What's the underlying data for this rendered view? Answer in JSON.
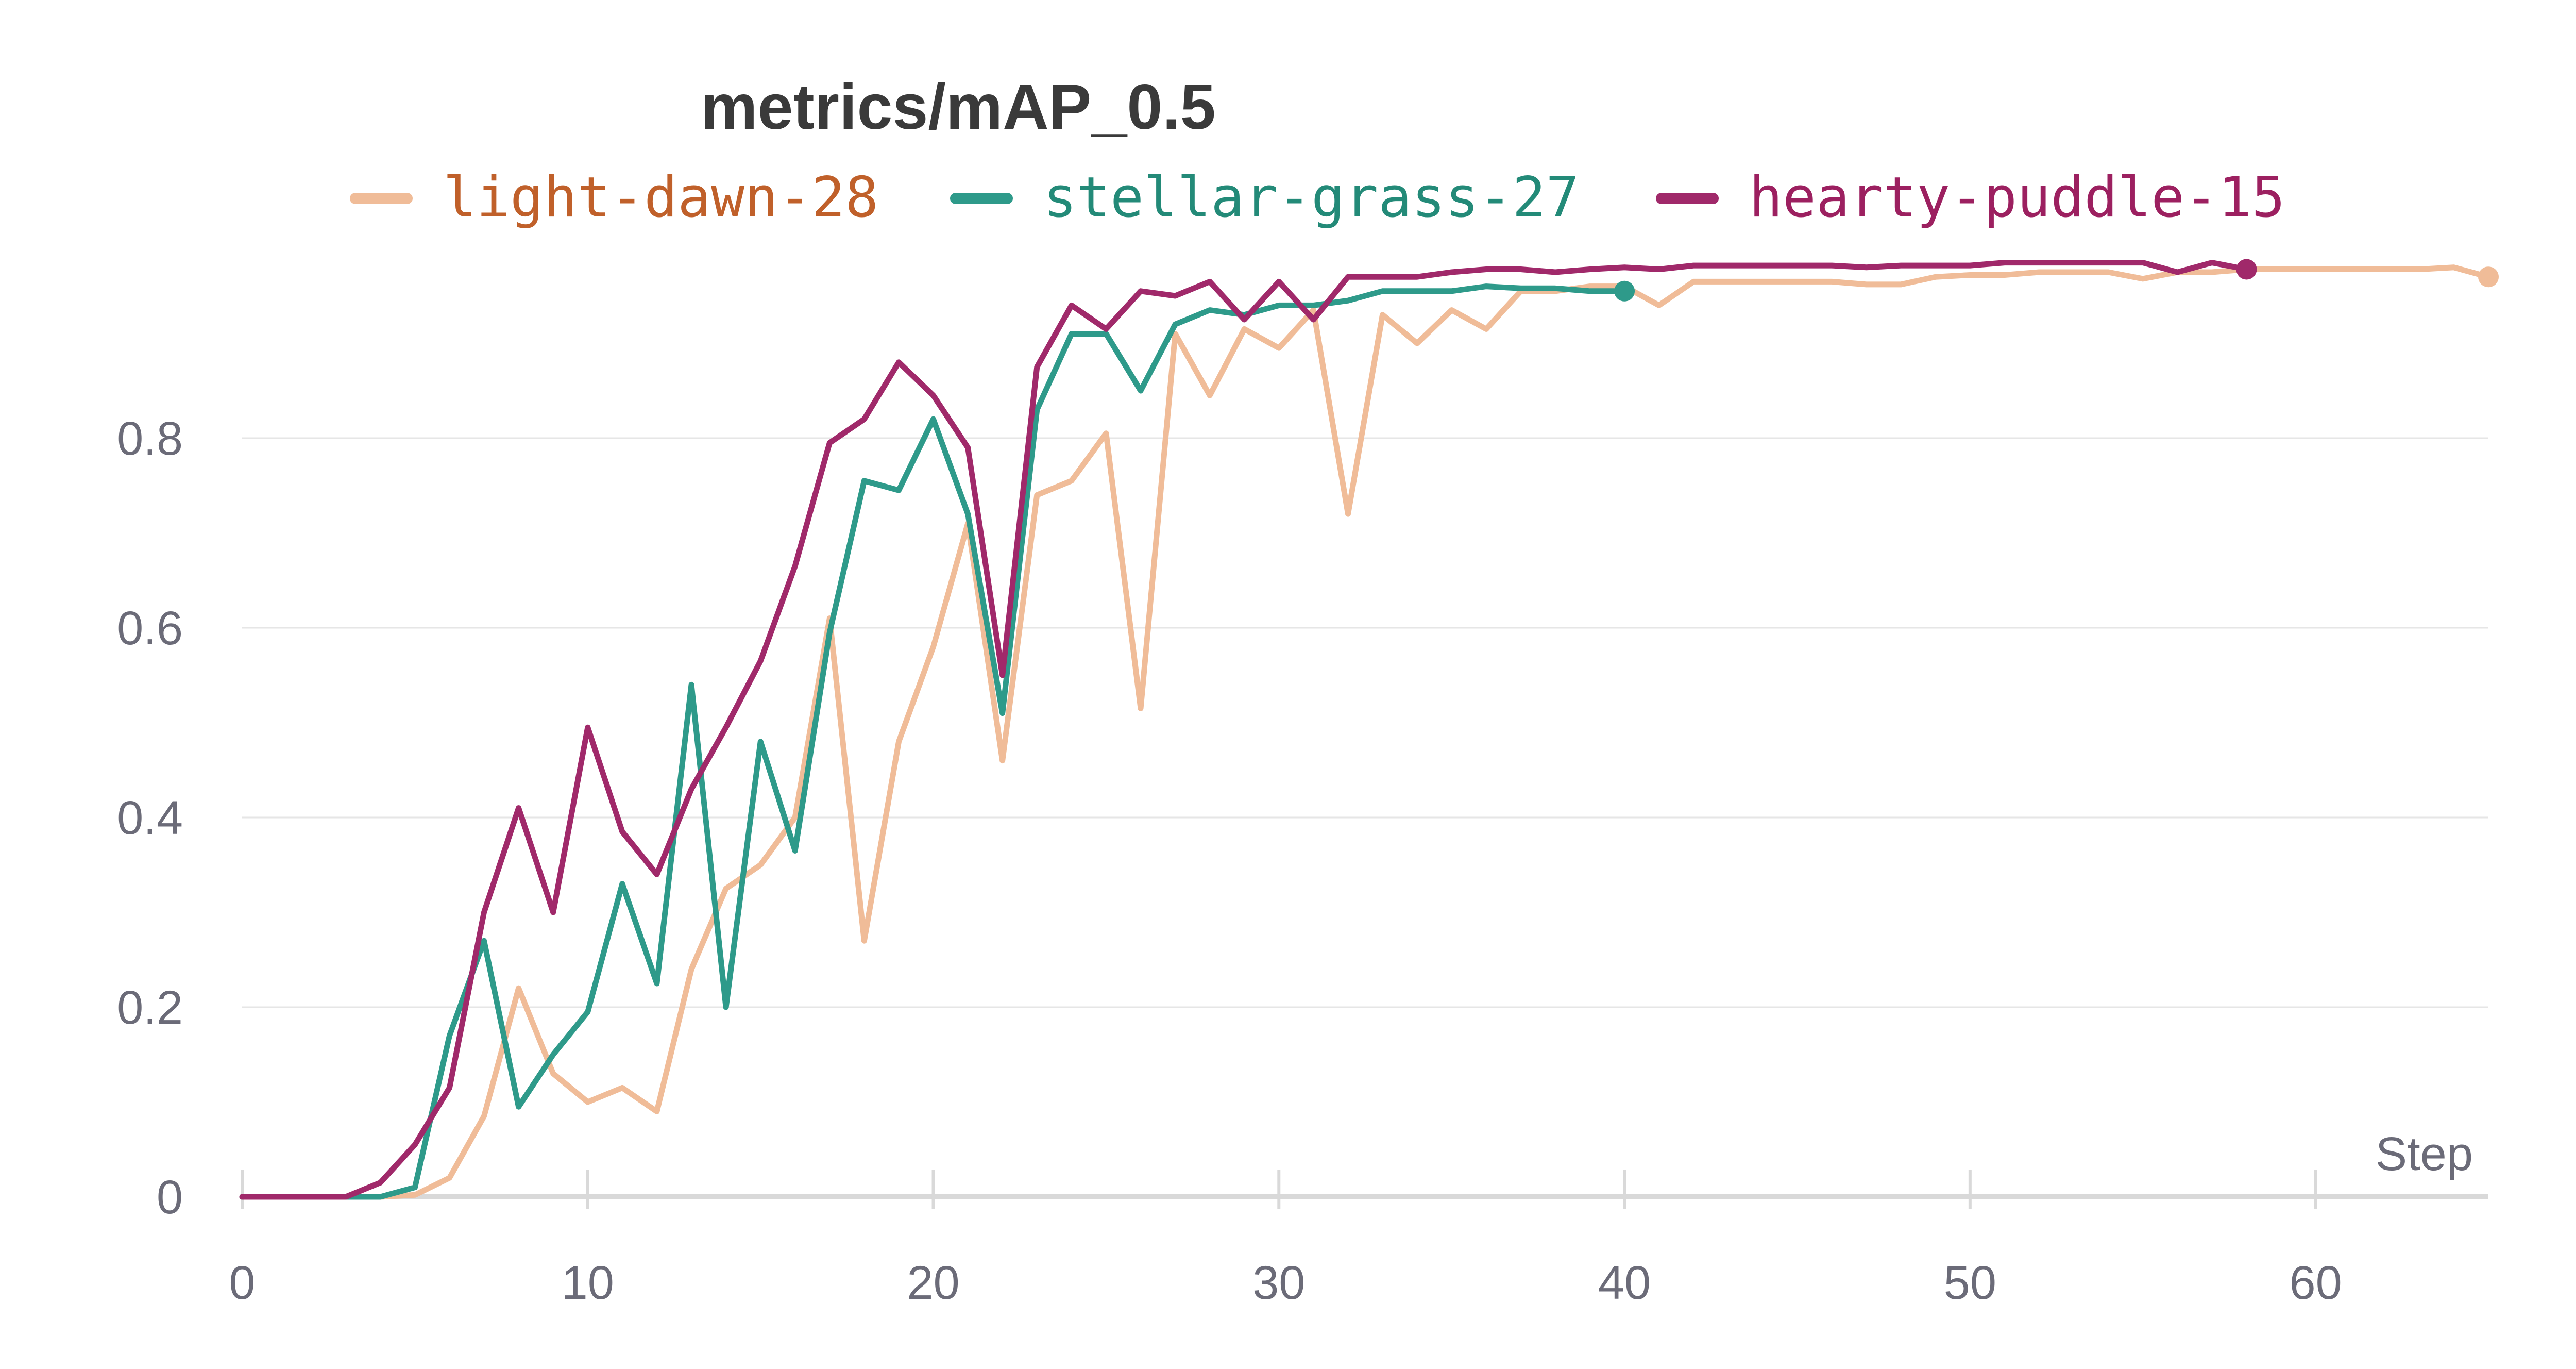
{
  "chart_data": {
    "type": "line",
    "title": "metrics/mAP_0.5",
    "xlabel": "Step",
    "ylabel": "",
    "xlim": [
      0,
      65
    ],
    "ylim": [
      0,
      1
    ],
    "x_ticks": [
      "0",
      "10",
      "20",
      "30",
      "40",
      "50",
      "60"
    ],
    "y_ticks": [
      "0",
      "0.2",
      "0.4",
      "0.6",
      "0.8"
    ],
    "grid": "horizontal",
    "legend_position": "top",
    "series": [
      {
        "name": "light-dawn-28",
        "color": "#f0bc98",
        "text_color": "#c0602a",
        "x": [
          0,
          1,
          2,
          3,
          4,
          5,
          6,
          7,
          8,
          9,
          10,
          11,
          12,
          13,
          14,
          15,
          16,
          17,
          18,
          19,
          20,
          21,
          22,
          23,
          24,
          25,
          26,
          27,
          28,
          29,
          30,
          31,
          32,
          33,
          34,
          35,
          36,
          37,
          38,
          39,
          40,
          41,
          42,
          43,
          44,
          45,
          46,
          47,
          48,
          49,
          50,
          51,
          52,
          53,
          54,
          55,
          56,
          57,
          58,
          59,
          60,
          61,
          62,
          63,
          64,
          65
        ],
        "values": [
          0,
          0,
          0,
          0,
          0,
          0.002,
          0.02,
          0.085,
          0.22,
          0.13,
          0.1,
          0.115,
          0.09,
          0.24,
          0.325,
          0.35,
          0.4,
          0.61,
          0.27,
          0.48,
          0.58,
          0.71,
          0.46,
          0.74,
          0.755,
          0.805,
          0.515,
          0.91,
          0.845,
          0.915,
          0.895,
          0.935,
          0.72,
          0.93,
          0.9,
          0.935,
          0.915,
          0.955,
          0.955,
          0.96,
          0.96,
          0.94,
          0.965,
          0.965,
          0.965,
          0.965,
          0.965,
          0.962,
          0.962,
          0.97,
          0.972,
          0.972,
          0.975,
          0.975,
          0.975,
          0.968,
          0.975,
          0.975,
          0.978,
          0.978,
          0.978,
          0.978,
          0.978,
          0.978,
          0.98,
          0.97
        ]
      },
      {
        "name": "stellar-grass-27",
        "color": "#2e9a8a",
        "text_color": "#238a78",
        "x": [
          0,
          1,
          2,
          3,
          4,
          5,
          6,
          7,
          8,
          9,
          10,
          11,
          12,
          13,
          14,
          15,
          16,
          17,
          18,
          19,
          20,
          21,
          22,
          23,
          24,
          25,
          26,
          27,
          28,
          29,
          30,
          31,
          32,
          33,
          34,
          35,
          36,
          37,
          38,
          39,
          40
        ],
        "values": [
          0,
          0,
          0,
          0,
          0,
          0.01,
          0.17,
          0.27,
          0.095,
          0.15,
          0.195,
          0.33,
          0.225,
          0.54,
          0.2,
          0.48,
          0.365,
          0.595,
          0.755,
          0.745,
          0.82,
          0.72,
          0.51,
          0.83,
          0.91,
          0.91,
          0.85,
          0.92,
          0.935,
          0.93,
          0.94,
          0.94,
          0.945,
          0.955,
          0.955,
          0.955,
          0.96,
          0.958,
          0.958,
          0.955,
          0.955
        ]
      },
      {
        "name": "hearty-puddle-15",
        "color": "#a0296a",
        "text_color": "#9c2060",
        "x": [
          0,
          1,
          2,
          3,
          4,
          5,
          6,
          7,
          8,
          9,
          10,
          11,
          12,
          13,
          14,
          15,
          16,
          17,
          18,
          19,
          20,
          21,
          22,
          23,
          24,
          25,
          26,
          27,
          28,
          29,
          30,
          31,
          32,
          33,
          34,
          35,
          36,
          37,
          38,
          39,
          40,
          41,
          42,
          43,
          44,
          45,
          46,
          47,
          48,
          49,
          50,
          51,
          52,
          53,
          54,
          55,
          56,
          57,
          58
        ],
        "values": [
          0,
          0,
          0,
          0,
          0.015,
          0.055,
          0.115,
          0.3,
          0.41,
          0.3,
          0.495,
          0.385,
          0.34,
          0.43,
          0.495,
          0.565,
          0.665,
          0.795,
          0.82,
          0.88,
          0.845,
          0.79,
          0.55,
          0.875,
          0.94,
          0.915,
          0.955,
          0.95,
          0.965,
          0.925,
          0.965,
          0.925,
          0.97,
          0.97,
          0.97,
          0.975,
          0.978,
          0.978,
          0.975,
          0.978,
          0.98,
          0.978,
          0.982,
          0.982,
          0.982,
          0.982,
          0.982,
          0.98,
          0.982,
          0.982,
          0.982,
          0.985,
          0.985,
          0.985,
          0.985,
          0.985,
          0.975,
          0.985,
          0.978
        ]
      }
    ]
  }
}
